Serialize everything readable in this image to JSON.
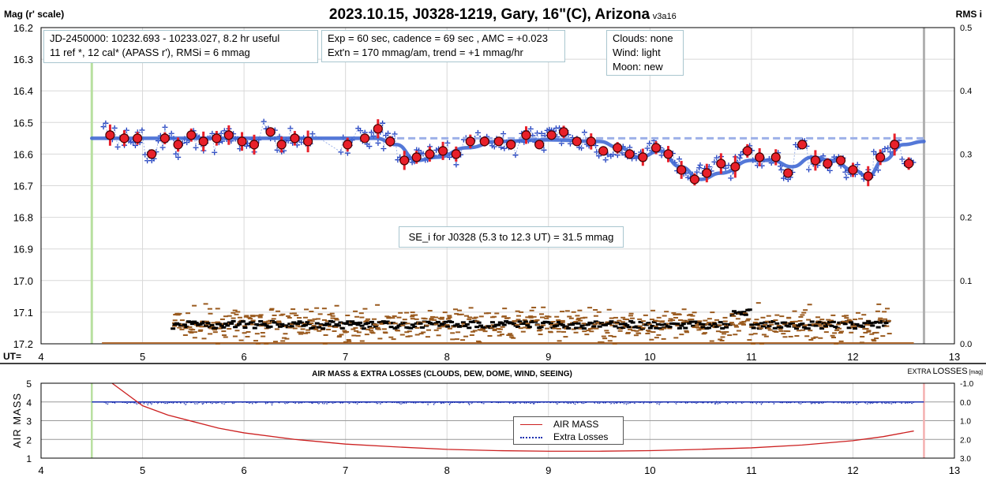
{
  "chart_data": [
    {
      "type": "scatter",
      "title": "2023.10.15, J0328-1219, Gary, 16\"(C), Arizona",
      "version": "- v3a16",
      "ylabel": "Mag (r' scale)",
      "ylabel_right": "RMS i",
      "xlabel": "UT=",
      "xlim": [
        4,
        13
      ],
      "ylim": [
        16.2,
        17.2
      ],
      "y_inverted": true,
      "ylim_right": [
        0,
        0.5
      ],
      "xticks": [
        "4",
        "5",
        "6",
        "7",
        "8",
        "9",
        "10",
        "11",
        "12",
        "13"
      ],
      "yticks": [
        "16.2",
        "16.3",
        "16.4",
        "16.5",
        "16.6",
        "16.7",
        "16.8",
        "16.9",
        "17.0",
        "17.1",
        "17.2"
      ],
      "yticks_right": [
        "0.5",
        "0.4",
        "0.3",
        "0.2",
        "0.1",
        "0.0"
      ],
      "grid": true,
      "info_boxes": {
        "jd_line1": "JD-2450000: 10232.693 - 10233.027, 8.2 hr useful",
        "jd_line2": "11 ref *, 12 cal*  (APASS r'), RMSi = 6 mmag",
        "exp_line1": "Exp = 60 sec, cadence = 69 sec , AMC = +0.023",
        "exp_line2": "Ext'n = 170 mmag/am, trend = +1 mmag/hr",
        "clouds": "Clouds: none",
        "wind": "Wind:  light",
        "moon": "Moon:  new",
        "se": "SE_i for J0328 (5.3 to 12.3 UT) = 31.5 mmag"
      },
      "markers": {
        "start_ut": 4.5,
        "end_ut": 12.7
      },
      "colors": {
        "binned": "#e8202a",
        "individual": "#1f3fbf",
        "trend": "#4169d4",
        "rms_individual": "#9a5a1e",
        "rms_binned": "#000000",
        "start": "#b8e0a0",
        "end": "#b0b0b0"
      },
      "binned_points": {
        "x": [
          4.68,
          4.82,
          4.95,
          5.09,
          5.22,
          5.35,
          5.48,
          5.6,
          5.73,
          5.85,
          5.98,
          6.1,
          6.26,
          6.37,
          6.5,
          6.63,
          7.02,
          7.19,
          7.32,
          7.44,
          7.58,
          7.7,
          7.83,
          7.96,
          8.09,
          8.23,
          8.37,
          8.51,
          8.63,
          8.78,
          8.91,
          9.03,
          9.15,
          9.28,
          9.42,
          9.54,
          9.68,
          9.8,
          9.93,
          10.06,
          10.18,
          10.31,
          10.44,
          10.56,
          10.7,
          10.84,
          10.96,
          11.08,
          11.24,
          11.36,
          11.5,
          11.63,
          11.75,
          11.88,
          12.0,
          12.15,
          12.27,
          12.41,
          12.55
        ],
        "y": [
          16.54,
          16.55,
          16.55,
          16.6,
          16.55,
          16.57,
          16.54,
          16.56,
          16.55,
          16.54,
          16.56,
          16.57,
          16.53,
          16.57,
          16.55,
          16.56,
          16.57,
          16.55,
          16.52,
          16.56,
          16.62,
          16.61,
          16.6,
          16.59,
          16.6,
          16.56,
          16.56,
          16.56,
          16.57,
          16.54,
          16.57,
          16.54,
          16.53,
          16.56,
          16.56,
          16.59,
          16.58,
          16.6,
          16.61,
          16.58,
          16.6,
          16.65,
          16.68,
          16.66,
          16.63,
          16.64,
          16.59,
          16.61,
          16.61,
          16.66,
          16.57,
          16.62,
          16.63,
          16.62,
          16.65,
          16.67,
          16.61,
          16.57,
          16.63
        ]
      },
      "trend_line": {
        "x": [
          4.5,
          5,
          6,
          7,
          7.3,
          7.5,
          7.7,
          7.9,
          8.2,
          8.5,
          9,
          9.5,
          9.7,
          9.9,
          10.1,
          10.3,
          10.5,
          10.7,
          11,
          11.2,
          11.4,
          11.6,
          11.8,
          12.0,
          12.15,
          12.3,
          12.5,
          12.7
        ],
        "y": [
          16.55,
          16.55,
          16.55,
          16.55,
          16.55,
          16.57,
          16.62,
          16.61,
          16.58,
          16.56,
          16.555,
          16.56,
          16.58,
          16.61,
          16.59,
          16.64,
          16.68,
          16.66,
          16.62,
          16.62,
          16.64,
          16.61,
          16.62,
          16.65,
          16.67,
          16.62,
          16.57,
          16.56
        ]
      },
      "reference_line": {
        "x": [
          7.4,
          12.7
        ],
        "y": 16.55
      },
      "rms_binned_level": 0.03
    },
    {
      "type": "line",
      "title": "AIR MASS & EXTRA LOSSES (CLOUDS, DEW, DOME, WIND, SEEING)",
      "ylabel": "AIR MASS",
      "ylabel_right_main": "EXTRA ",
      "ylabel_right_big": "LOSSES",
      "ylabel_right_unit": " [mag]",
      "xlim": [
        4,
        13
      ],
      "ylim": [
        1,
        5
      ],
      "ylim_right": [
        -1.0,
        3.0
      ],
      "xticks": [
        "4",
        "5",
        "6",
        "7",
        "8",
        "9",
        "10",
        "11",
        "12",
        "13"
      ],
      "yticks": [
        "5",
        "4",
        "3",
        "2",
        "1"
      ],
      "yticks_right": [
        "-1.0",
        "0.0",
        "1.0",
        "2.0",
        "3.0"
      ],
      "grid": true,
      "legend": {
        "placement": "center",
        "items": [
          "AIR MASS",
          "Extra Losses"
        ]
      },
      "series": [
        {
          "name": "AIR MASS",
          "color": "#cc2020",
          "x": [
            4.7,
            5.0,
            5.25,
            5.5,
            5.75,
            6.0,
            6.5,
            7.0,
            7.5,
            8.0,
            8.5,
            9.0,
            9.5,
            10.0,
            10.5,
            11.0,
            11.5,
            12.0,
            12.3,
            12.6
          ],
          "y": [
            5.0,
            3.8,
            3.3,
            2.95,
            2.6,
            2.35,
            2.0,
            1.75,
            1.6,
            1.47,
            1.4,
            1.37,
            1.37,
            1.4,
            1.47,
            1.55,
            1.7,
            1.93,
            2.15,
            2.45
          ]
        },
        {
          "name": "Extra Losses",
          "color": "#1a2fb0",
          "baseline": 0.0,
          "typical_range": [
            -0.1,
            0.35
          ]
        }
      ]
    }
  ]
}
